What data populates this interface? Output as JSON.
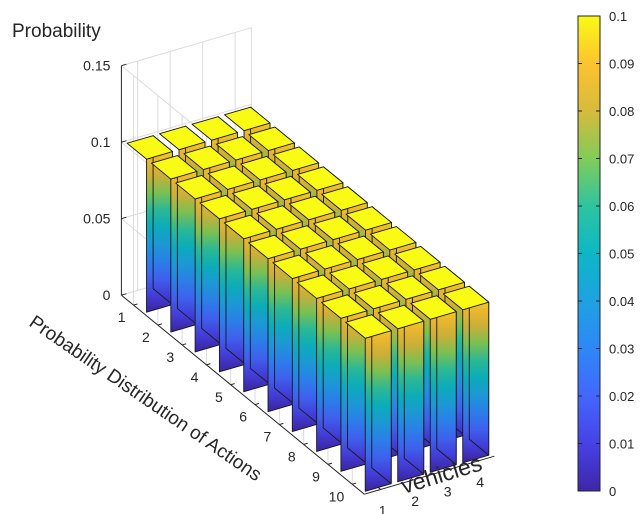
{
  "chart_data": {
    "type": "bar3d",
    "zlabel": "Probability",
    "xlabel": "vehicles",
    "ylabel": "Probability Distribution of Actions",
    "x_categories": [
      "1",
      "2",
      "3",
      "4"
    ],
    "y_categories": [
      "1",
      "2",
      "3",
      "4",
      "5",
      "6",
      "7",
      "8",
      "9",
      "10"
    ],
    "zlim": [
      0,
      0.15
    ],
    "z_ticks": [
      "0",
      "0.05",
      "0.1",
      "0.15"
    ],
    "values": [
      [
        0.1,
        0.1,
        0.1,
        0.1,
        0.1,
        0.1,
        0.1,
        0.1,
        0.1,
        0.1
      ],
      [
        0.1,
        0.1,
        0.1,
        0.1,
        0.1,
        0.1,
        0.1,
        0.1,
        0.1,
        0.1
      ],
      [
        0.1,
        0.1,
        0.1,
        0.1,
        0.1,
        0.1,
        0.1,
        0.1,
        0.1,
        0.1
      ],
      [
        0.1,
        0.1,
        0.1,
        0.1,
        0.1,
        0.1,
        0.1,
        0.1,
        0.1,
        0.1
      ]
    ],
    "colorbar": {
      "range": [
        0,
        0.1
      ],
      "ticks": [
        "0",
        "0.01",
        "0.02",
        "0.03",
        "0.04",
        "0.05",
        "0.06",
        "0.07",
        "0.08",
        "0.09",
        "0.1"
      ],
      "colormap": "parula"
    },
    "grid": true
  }
}
